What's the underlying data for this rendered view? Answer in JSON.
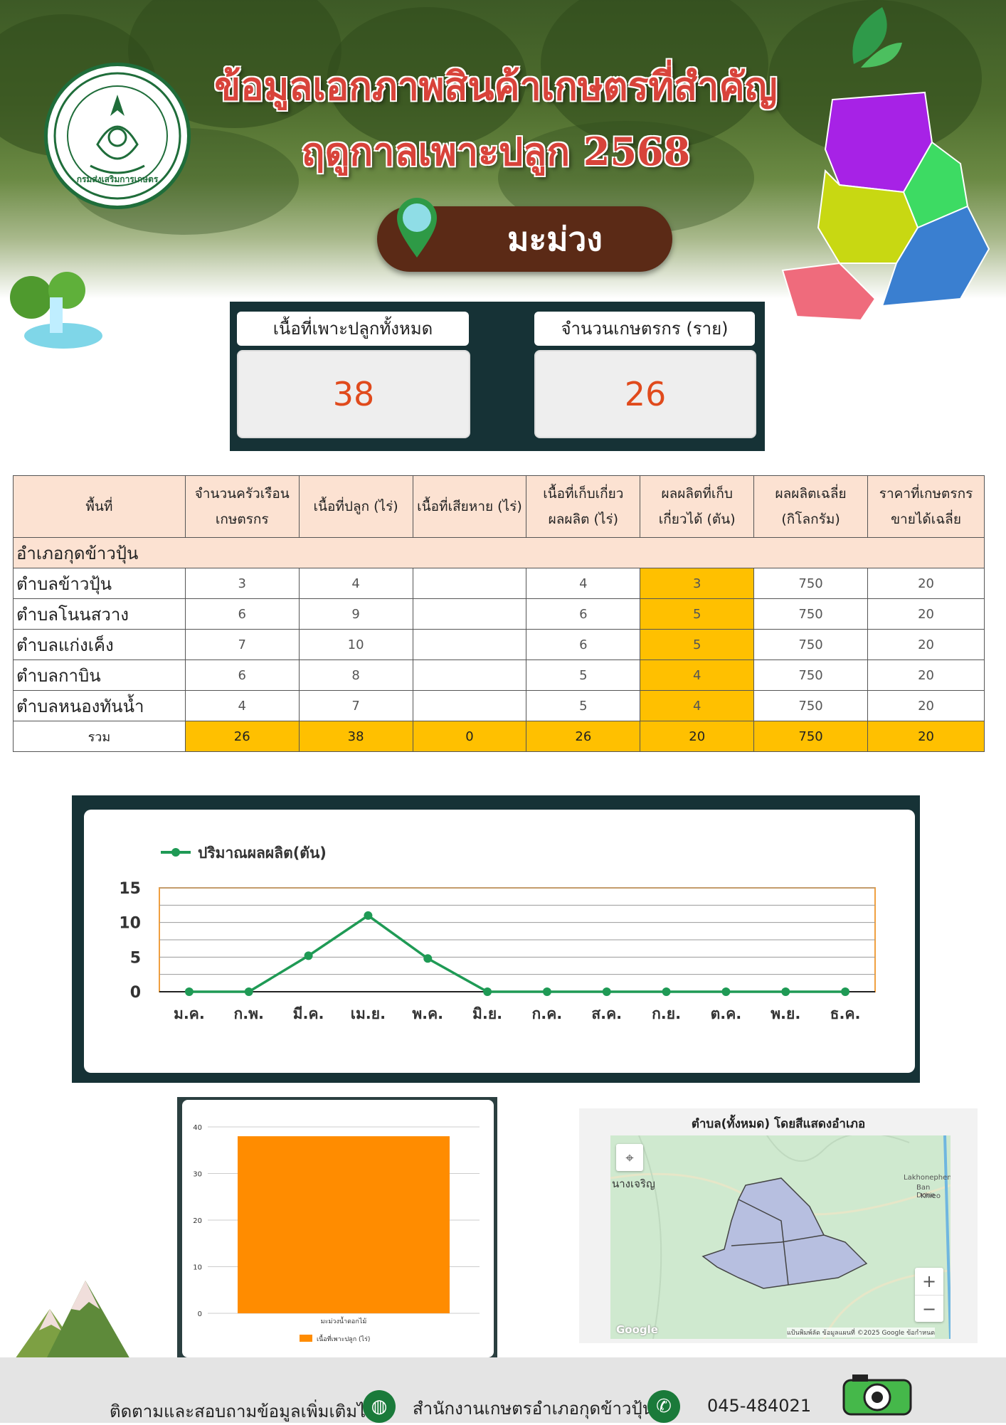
{
  "header": {
    "title_line1": "ข้อมูลเอกภาพสินค้าเกษตรที่สำคัญ",
    "title_line2": "ฤดูกาลเพาะปลูก 2568",
    "crop_name": "มะม่วง",
    "seal_text": "กรมส่งเสริมการเกษตร"
  },
  "stats": {
    "area_label": "เนื้อที่เพาะปลูกทั้งหมด",
    "area_value": "38",
    "farmers_label": "จำนวนเกษตรกร (ราย)",
    "farmers_value": "26"
  },
  "table": {
    "headers": {
      "area": "พื้นที่",
      "households_1": "จำนวนครัวเรือน",
      "households_2": "เกษตรกร",
      "planted": "เนื้อที่ปลูก (ไร่)",
      "damaged": "เนื้อที่เสียหาย (ไร่)",
      "harvest_area_1": "เนื้อที่เก็บเกี่ยว",
      "harvest_area_2": "ผลผลิต (ไร่)",
      "yield_1": "ผลผลิตที่เก็บ",
      "yield_2": "เกี่ยวได้ (ตัน)",
      "avg_1": "ผลผลิตเฉลี่ย",
      "avg_2": "(กิโลกรัม)",
      "price_1": "ราคาที่เกษตรกร",
      "price_2": "ขายได้เฉลี่ย"
    },
    "district": "อำเภอกุดข้าวปุ้น",
    "rows": [
      {
        "name": "ตำบลข้าวปุ้น",
        "households": "3",
        "planted": "4",
        "damaged": "",
        "harvest_area": "4",
        "yield": "3",
        "avg": "750",
        "price": "20"
      },
      {
        "name": "ตำบลโนนสวาง",
        "households": "6",
        "planted": "9",
        "damaged": "",
        "harvest_area": "6",
        "yield": "5",
        "avg": "750",
        "price": "20"
      },
      {
        "name": "ตำบลแก่งเค็ง",
        "households": "7",
        "planted": "10",
        "damaged": "",
        "harvest_area": "6",
        "yield": "5",
        "avg": "750",
        "price": "20"
      },
      {
        "name": "ตำบลกาบิน",
        "households": "6",
        "planted": "8",
        "damaged": "",
        "harvest_area": "5",
        "yield": "4",
        "avg": "750",
        "price": "20"
      },
      {
        "name": "ตำบลหนองทันน้ำ",
        "households": "4",
        "planted": "7",
        "damaged": "",
        "harvest_area": "5",
        "yield": "4",
        "avg": "750",
        "price": "20"
      }
    ],
    "total": {
      "name": "รวม",
      "households": "26",
      "planted": "38",
      "damaged": "0",
      "harvest_area": "26",
      "yield": "20",
      "avg": "750",
      "price": "20"
    }
  },
  "chart_data": [
    {
      "type": "line",
      "title": "",
      "legend": "ปริมาณผลผลิต(ตัน)",
      "legend_position": "top-left",
      "categories": [
        "ม.ค.",
        "ก.พ.",
        "มี.ค.",
        "เม.ย.",
        "พ.ค.",
        "มิ.ย.",
        "ก.ค.",
        "ส.ค.",
        "ก.ย.",
        "ต.ค.",
        "พ.ย.",
        "ธ.ค."
      ],
      "series": [
        {
          "name": "ปริมาณผลผลิต(ตัน)",
          "values": [
            0,
            0,
            5.2,
            11,
            4.8,
            0,
            0,
            0,
            0,
            0,
            0,
            0
          ]
        }
      ],
      "yticks": [
        "0",
        "5",
        "10",
        "15"
      ],
      "ylim": [
        0,
        15
      ],
      "grid": true,
      "line_color": "#1f9a55"
    },
    {
      "type": "bar",
      "title": "",
      "categories": [
        "มะม่วงน้ำดอกไม้"
      ],
      "series": [
        {
          "name": "เนื้อที่เพาะปลูก (ไร่)",
          "values": [
            38
          ]
        }
      ],
      "yticks": [
        "0",
        "10",
        "20",
        "30",
        "40"
      ],
      "ylim": [
        0,
        40
      ],
      "legend_position": "bottom",
      "bar_color": "#ff8c00"
    }
  ],
  "map": {
    "title": "ตำบล(ทั้งหมด) โดยสีแสดงอำเภอ",
    "place_left": "นางเจริญ",
    "place_right_1": "Lakhonephen",
    "place_right_2": "Ban Done",
    "place_right_3": "Khieo",
    "zoom_in": "+",
    "zoom_out": "−",
    "google": "Google",
    "attribution": "แป้นพิมพ์ลัด   ข้อมูลแผนที่ ©2025 Google   ข้อกำหนด"
  },
  "footer": {
    "follow_text": "ติดตามและสอบถามข้อมูลเพิ่มเติมได้ที่",
    "office": "สำนักงานเกษตรอำเภอกุดข้าวปุ้น",
    "phone": "045-484021"
  }
}
